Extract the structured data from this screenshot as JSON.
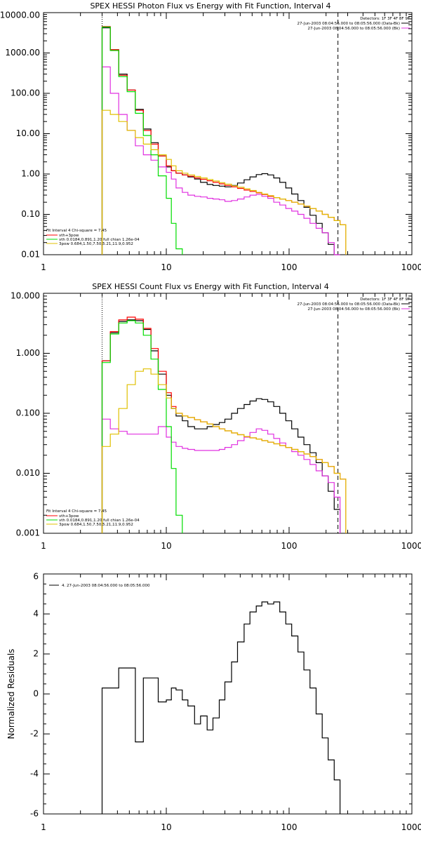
{
  "chart_data": [
    {
      "type": "line",
      "title": "SPEX HESSI Photon Flux vs Energy with Fit Function, Interval 4",
      "xlabel": "",
      "ylabel": "",
      "xscale": "log",
      "yscale": "log",
      "xlim": [
        1,
        1000
      ],
      "ylim": [
        0.01,
        10000
      ],
      "x_tick_labels": [
        "1",
        "10",
        "100",
        "1000"
      ],
      "y_tick_labels": [
        "0.01",
        "0.10",
        "1.00",
        "10.00",
        "100.00",
        "1000.00",
        "10000.00"
      ],
      "info_lines": [
        "Detectors: 1F 3F 4F 8F 9F",
        "27-Jun-2003 08:04:56.000 to 08:05:56.000 (Data-Bk)",
        "27-Jun-2003 08:04:56.000 to 08:05:56.000 (Bk)"
      ],
      "info_colors": [
        "",
        "#000000",
        "#e030e0"
      ],
      "fit_lines": [
        "Fit Interval 4   Chi-square = 7.45",
        "vth+3pow",
        "vth 0.0184,0.891,1.20  full chian 1.26e-04",
        "3pow 0.684,1.50,7.50,5.21,11.9,0.952"
      ],
      "fit_colors": [
        "",
        "#ff0000",
        "#00dd00",
        "#e0c000"
      ],
      "vlines": [
        {
          "x": 3,
          "style": "dotted"
        },
        {
          "x": 250,
          "style": "dashed"
        }
      ],
      "grid": false,
      "series": [
        {
          "name": "Data-Bk",
          "color": "#000000",
          "edges": [
            3,
            3.5,
            4.1,
            4.8,
            5.6,
            6.5,
            7.5,
            8.6,
            10,
            11,
            12,
            13.5,
            15,
            17,
            19,
            21.5,
            24,
            27,
            30,
            34,
            38,
            43,
            48,
            54,
            60,
            67,
            75,
            84,
            94,
            105,
            118,
            132,
            148,
            166,
            186,
            208,
            233,
            260
          ],
          "values": [
            4200,
            1200,
            300,
            120,
            40,
            13,
            6,
            2.8,
            1.5,
            1.2,
            1.05,
            0.95,
            0.85,
            0.75,
            0.62,
            0.55,
            0.52,
            0.5,
            0.48,
            0.52,
            0.6,
            0.72,
            0.85,
            0.97,
            1.02,
            0.95,
            0.8,
            0.62,
            0.45,
            0.32,
            0.22,
            0.15,
            0.095,
            0.06,
            0.035,
            0.018,
            0.009
          ]
        },
        {
          "name": "Bk",
          "color": "#e030e0",
          "edges": [
            3,
            3.5,
            4.1,
            4.8,
            5.6,
            6.5,
            7.5,
            8.6,
            10,
            11,
            12,
            13.5,
            15,
            17,
            19,
            21.5,
            24,
            27,
            30,
            34,
            38,
            43,
            48,
            54,
            60,
            67,
            75,
            84,
            94,
            105,
            118,
            132,
            148,
            166,
            186,
            208,
            233,
            260
          ],
          "values": [
            450,
            100,
            30,
            12,
            5,
            3,
            2.2,
            1.5,
            1.1,
            0.75,
            0.45,
            0.35,
            0.3,
            0.28,
            0.27,
            0.25,
            0.24,
            0.23,
            0.21,
            0.22,
            0.24,
            0.27,
            0.3,
            0.31,
            0.28,
            0.25,
            0.2,
            0.17,
            0.14,
            0.12,
            0.1,
            0.08,
            0.06,
            0.045,
            0.035,
            0.02,
            0.009
          ]
        },
        {
          "name": "vth+3pow",
          "color": "#ff0000",
          "edges": [
            3,
            3.5,
            4.1,
            4.8,
            5.6,
            6.5,
            7.5,
            8.6,
            10,
            11,
            12,
            13.5,
            15,
            17,
            19,
            21.5,
            24,
            27,
            30,
            34,
            38,
            43,
            48,
            54,
            60,
            67,
            75,
            84,
            94,
            105,
            118,
            132,
            148,
            166,
            186,
            208,
            233,
            260,
            290
          ],
          "values": [
            4500,
            1200,
            280,
            120,
            38,
            12,
            5.5,
            2.8,
            1.6,
            1.2,
            1.05,
            0.95,
            0.88,
            0.8,
            0.74,
            0.68,
            0.62,
            0.57,
            0.52,
            0.48,
            0.44,
            0.4,
            0.37,
            0.34,
            0.31,
            0.28,
            0.26,
            0.24,
            0.22,
            0.2,
            0.18,
            0.16,
            0.14,
            0.12,
            0.1,
            0.085,
            0.07,
            0.055
          ]
        },
        {
          "name": "vth",
          "color": "#00dd00",
          "edges": [
            3,
            3.5,
            4.1,
            4.8,
            5.6,
            6.5,
            7.5,
            8.6,
            10,
            11,
            12,
            13.5
          ],
          "values": [
            4400,
            1150,
            260,
            110,
            32,
            9,
            3,
            0.9,
            0.25,
            0.06,
            0.014
          ]
        },
        {
          "name": "3pow",
          "color": "#e0c000",
          "edges": [
            3,
            3.5,
            4.1,
            4.8,
            5.6,
            6.5,
            7.5,
            8.6,
            10,
            11,
            12,
            13.5,
            15,
            17,
            19,
            21.5,
            24,
            27,
            30,
            34,
            38,
            43,
            48,
            54,
            60,
            67,
            75,
            84,
            94,
            105,
            118,
            132,
            148,
            166,
            186,
            208,
            233,
            260,
            290
          ],
          "values": [
            38,
            30,
            20,
            12,
            8,
            5.5,
            4,
            3,
            2.3,
            1.6,
            1.2,
            1.05,
            0.95,
            0.87,
            0.8,
            0.73,
            0.67,
            0.61,
            0.56,
            0.51,
            0.47,
            0.43,
            0.39,
            0.35,
            0.32,
            0.29,
            0.26,
            0.24,
            0.22,
            0.2,
            0.18,
            0.16,
            0.14,
            0.12,
            0.1,
            0.085,
            0.07,
            0.055
          ]
        }
      ]
    },
    {
      "type": "line",
      "title": "SPEX HESSI Count Flux vs Energy with Fit Function, Interval 4",
      "xlabel": "",
      "ylabel": "",
      "xscale": "log",
      "yscale": "log",
      "xlim": [
        1,
        1000
      ],
      "ylim": [
        0.001,
        10
      ],
      "x_tick_labels": [
        "1",
        "10",
        "100",
        "1000"
      ],
      "y_tick_labels": [
        "0.001",
        "0.010",
        "0.100",
        "1.000",
        "10.000"
      ],
      "info_lines": [
        "Detectors: 1F 3F 4F 8F 9F",
        "27-Jun-2003 08:04:56.000 to 08:05:56.000 (Data-Bk)",
        "27-Jun-2003 08:04:56.000 to 08:05:56.000 (Bk)"
      ],
      "info_colors": [
        "",
        "#000000",
        "#e030e0"
      ],
      "fit_lines": [
        "Fit Interval 4   Chi-square = 7.45",
        "vth+3pow",
        "vth 0.0184,0.891,1.20  full chian 1.26e-04",
        "3pow 0.684,1.50,7.50,5.21,11.9,0.952"
      ],
      "fit_colors": [
        "",
        "#ff0000",
        "#00dd00",
        "#e0c000"
      ],
      "vlines": [
        {
          "x": 3,
          "style": "dotted"
        },
        {
          "x": 250,
          "style": "dashed"
        }
      ],
      "grid": false,
      "series": [
        {
          "name": "Data-Bk",
          "color": "#000000",
          "edges": [
            3,
            3.5,
            4.1,
            4.8,
            5.6,
            6.5,
            7.5,
            8.6,
            10,
            11,
            12,
            13.5,
            15,
            17,
            19,
            21.5,
            24,
            27,
            30,
            34,
            38,
            43,
            48,
            54,
            60,
            67,
            75,
            84,
            94,
            105,
            118,
            132,
            148,
            166,
            186,
            208,
            233,
            260
          ],
          "values": [
            0.75,
            2.2,
            3.4,
            3.6,
            3.5,
            2.5,
            1.1,
            0.45,
            0.2,
            0.12,
            0.09,
            0.075,
            0.06,
            0.055,
            0.055,
            0.06,
            0.065,
            0.07,
            0.08,
            0.1,
            0.12,
            0.14,
            0.16,
            0.175,
            0.17,
            0.155,
            0.13,
            0.1,
            0.075,
            0.055,
            0.04,
            0.03,
            0.022,
            0.015,
            0.009,
            0.005,
            0.0025
          ]
        },
        {
          "name": "Bk",
          "color": "#e030e0",
          "edges": [
            3,
            3.5,
            4.1,
            4.8,
            5.6,
            6.5,
            7.5,
            8.6,
            10,
            11,
            12,
            13.5,
            15,
            17,
            19,
            21.5,
            24,
            27,
            30,
            34,
            38,
            43,
            48,
            54,
            60,
            67,
            75,
            84,
            94,
            105,
            118,
            132,
            148,
            166,
            186,
            208,
            233,
            260
          ],
          "values": [
            0.08,
            0.055,
            0.05,
            0.045,
            0.045,
            0.045,
            0.045,
            0.06,
            0.04,
            0.033,
            0.028,
            0.026,
            0.025,
            0.024,
            0.024,
            0.024,
            0.024,
            0.025,
            0.027,
            0.03,
            0.035,
            0.04,
            0.048,
            0.055,
            0.052,
            0.045,
            0.038,
            0.032,
            0.027,
            0.023,
            0.02,
            0.017,
            0.014,
            0.011,
            0.009,
            0.007,
            0.004
          ]
        },
        {
          "name": "vth+3pow",
          "color": "#ff0000",
          "edges": [
            3,
            3.5,
            4.1,
            4.8,
            5.6,
            6.5,
            7.5,
            8.6,
            10,
            11,
            12,
            13.5,
            15,
            17,
            19,
            21.5,
            24,
            27,
            30,
            34,
            38,
            43,
            48,
            54,
            60,
            67,
            75,
            84,
            94,
            105,
            118,
            132,
            148,
            166,
            186,
            208,
            233,
            260,
            290
          ],
          "values": [
            0.75,
            2.3,
            3.6,
            4.0,
            3.7,
            2.6,
            1.2,
            0.5,
            0.22,
            0.13,
            0.1,
            0.09,
            0.085,
            0.078,
            0.072,
            0.066,
            0.06,
            0.055,
            0.051,
            0.047,
            0.044,
            0.041,
            0.039,
            0.037,
            0.035,
            0.033,
            0.031,
            0.029,
            0.027,
            0.025,
            0.023,
            0.021,
            0.019,
            0.017,
            0.015,
            0.013,
            0.01,
            0.008
          ]
        },
        {
          "name": "vth",
          "color": "#00dd00",
          "edges": [
            3,
            3.5,
            4.1,
            4.8,
            5.6,
            6.5,
            7.5,
            8.6,
            10,
            11,
            12,
            13.5
          ],
          "values": [
            0.7,
            2.1,
            3.2,
            3.5,
            3.2,
            2.0,
            0.8,
            0.25,
            0.06,
            0.012,
            0.002
          ]
        },
        {
          "name": "3pow",
          "color": "#e0c000",
          "edges": [
            3,
            3.5,
            4.1,
            4.8,
            5.6,
            6.5,
            7.5,
            8.6,
            10,
            11,
            12,
            13.5,
            15,
            17,
            19,
            21.5,
            24,
            27,
            30,
            34,
            38,
            43,
            48,
            54,
            60,
            67,
            75,
            84,
            94,
            105,
            118,
            132,
            148,
            166,
            186,
            208,
            233,
            260,
            290
          ],
          "values": [
            0.028,
            0.045,
            0.12,
            0.3,
            0.5,
            0.55,
            0.45,
            0.3,
            0.18,
            0.12,
            0.1,
            0.09,
            0.085,
            0.078,
            0.072,
            0.066,
            0.06,
            0.055,
            0.051,
            0.047,
            0.044,
            0.041,
            0.039,
            0.037,
            0.035,
            0.033,
            0.031,
            0.029,
            0.027,
            0.025,
            0.023,
            0.021,
            0.019,
            0.017,
            0.015,
            0.013,
            0.01,
            0.008
          ]
        }
      ]
    },
    {
      "type": "line",
      "title": "",
      "xlabel": "",
      "ylabel": "Normalized Residuals",
      "xscale": "log",
      "yscale": "linear",
      "xlim": [
        1,
        1000
      ],
      "ylim": [
        -6,
        6
      ],
      "x_tick_labels": [
        "1",
        "10",
        "100",
        "1000"
      ],
      "y_tick_labels": [
        "-6",
        "-4",
        "-2",
        "0",
        "2",
        "4",
        "6"
      ],
      "legend": "4. 27-Jun-2003 08:04:56.000 to 08:05:56.000",
      "grid": false,
      "series": [
        {
          "name": "4. 27-Jun-2003 08:04:56.000 to 08:05:56.000",
          "color": "#000000",
          "edges": [
            3,
            3.5,
            4.1,
            4.8,
            5.6,
            6.5,
            7.5,
            8.6,
            10,
            11,
            12,
            13.5,
            15,
            17,
            19,
            21.5,
            24,
            27,
            30,
            34,
            38,
            43,
            48,
            54,
            60,
            67,
            75,
            84,
            94,
            105,
            118,
            132,
            148,
            166,
            186,
            208,
            233,
            260
          ],
          "values": [
            0.3,
            0.3,
            1.3,
            1.3,
            -2.4,
            0.8,
            0.8,
            -0.4,
            -0.3,
            0.3,
            0.2,
            -0.3,
            -0.6,
            -1.5,
            -1.1,
            -1.8,
            -1.2,
            -0.3,
            0.6,
            1.6,
            2.6,
            3.5,
            4.1,
            4.4,
            4.6,
            4.5,
            4.6,
            4.1,
            3.5,
            2.9,
            2.1,
            1.2,
            0.3,
            -1.0,
            -2.2,
            -3.3,
            -4.3
          ]
        }
      ]
    }
  ]
}
